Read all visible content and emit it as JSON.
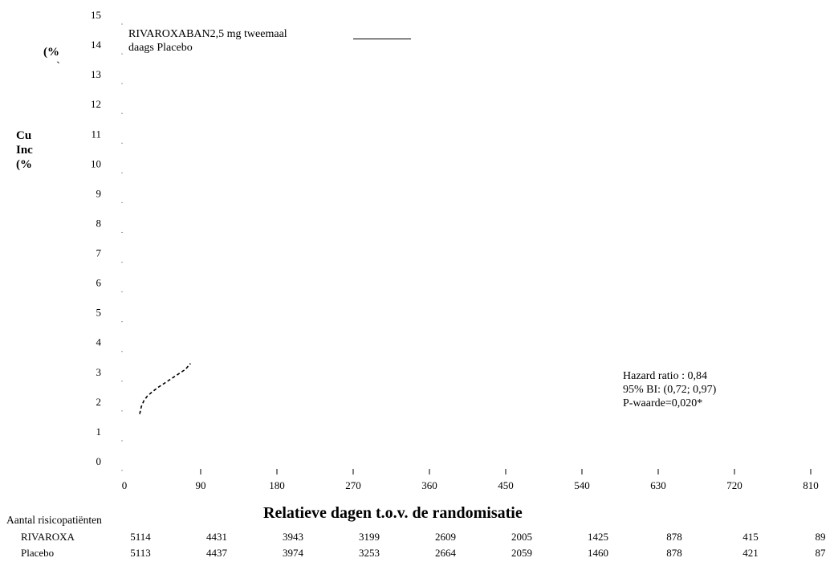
{
  "chart_data": {
    "type": "line",
    "ylabel_lines": [
      "Cu",
      "Inc",
      "(%"
    ],
    "ylabel_fragment": [
      "(%",
      "`"
    ],
    "yticks": [
      0,
      1,
      2,
      3,
      4,
      5,
      6,
      7,
      8,
      9,
      10,
      11,
      12,
      13,
      14,
      15
    ],
    "ylim": [
      0,
      15
    ],
    "xticks": [
      0,
      90,
      180,
      270,
      360,
      450,
      540,
      630,
      720,
      810
    ],
    "xlim": [
      0,
      810
    ],
    "xlabel": "Relatieve dagen t.o.v. de randomisatie",
    "legend_lines": [
      "RIVAROXABAN2,5 mg tweemaal",
      "daags Placebo"
    ],
    "series": [
      {
        "name": "",
        "style": "dashed",
        "color": "#000000",
        "x": [
          18,
          20,
          23,
          27,
          33,
          40,
          48,
          56,
          64,
          72,
          78
        ],
        "y": [
          1.6,
          1.85,
          2.05,
          2.2,
          2.35,
          2.5,
          2.65,
          2.8,
          2.95,
          3.1,
          3.3
        ]
      }
    ],
    "annotations": [
      "Hazard ratio : 0,84",
      "95% BI: (0,72; 0,97)",
      "P-waarde=0,020*"
    ]
  },
  "risk_table": {
    "title": "Aantal risicopatiënten",
    "rows": [
      {
        "label": "RIVAROXA",
        "values": [
          "5114",
          "4431",
          "3943",
          "3199",
          "2609",
          "2005",
          "1425",
          "878",
          "415",
          "89"
        ]
      },
      {
        "label": "Placebo",
        "values": [
          "5113",
          "4437",
          "3974",
          "3253",
          "2664",
          "2059",
          "1460",
          "878",
          "421",
          "87"
        ]
      }
    ]
  }
}
